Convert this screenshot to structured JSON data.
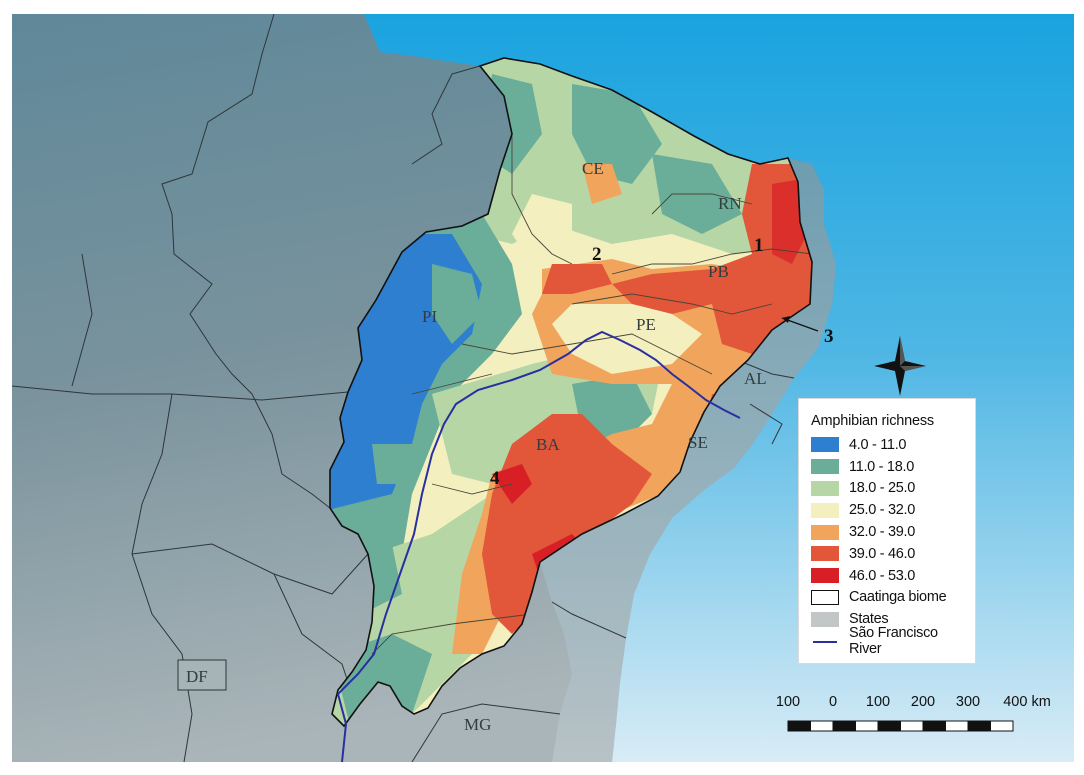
{
  "legend": {
    "title": "Amphibian richness",
    "classes": [
      {
        "label": "4.0 - 11.0",
        "color": "#2e7fcf"
      },
      {
        "label": "11.0 - 18.0",
        "color": "#6aae9a"
      },
      {
        "label": "18.0 - 25.0",
        "color": "#b6d6a6"
      },
      {
        "label": "25.0 - 32.0",
        "color": "#f3efbf"
      },
      {
        "label": "32.0 - 39.0",
        "color": "#f1a55c"
      },
      {
        "label": "39.0 - 46.0",
        "color": "#e2563a"
      },
      {
        "label": "46.0 - 53.0",
        "color": "#d91f26"
      }
    ],
    "biome_label": "Caatinga biome",
    "states_label": "States",
    "river_label": "São Francisco River"
  },
  "state_labels": {
    "ce": "CE",
    "rn": "RN",
    "pb": "PB",
    "pe": "PE",
    "pi": "PI",
    "al": "AL",
    "se": "SE",
    "ba": "BA",
    "df": "DF",
    "mg": "MG"
  },
  "markers": {
    "m1": "1",
    "m2": "2",
    "m3": "3",
    "m4": "4"
  },
  "scale": {
    "ticks": [
      "100",
      "0",
      "100",
      "200",
      "300",
      "400 km"
    ]
  },
  "colors": {
    "ocean_top": "#1aa3df",
    "ocean_bottom": "#d8ecf6",
    "land": "#6f8e9a",
    "states_light": "#b9c4c7",
    "river": "#2a2fa0"
  }
}
